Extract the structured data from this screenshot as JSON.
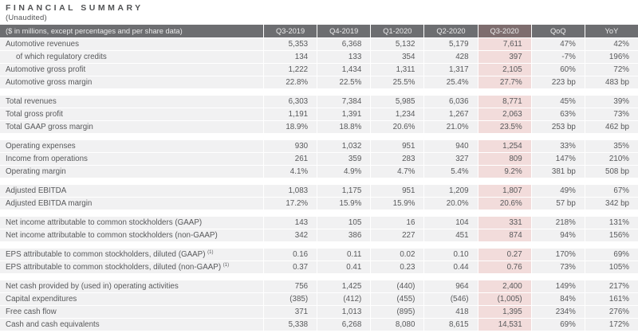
{
  "title": "FINANCIAL SUMMARY",
  "subtitle": "(Unaudited)",
  "colors": {
    "header_bg": "#6d6e71",
    "header_highlight_bg": "#7e6d6e",
    "header_text": "#ebebec",
    "row_bg": "#f1f1f2",
    "highlight_cell_bg": "#f2dcdb",
    "text": "#58595b",
    "text_dark": "#515254"
  },
  "table": {
    "label_header": "($ in millions, except percentages and per share data)",
    "columns": [
      "Q3-2019",
      "Q4-2019",
      "Q1-2020",
      "Q2-2020",
      "Q3-2020",
      "QoQ",
      "YoY"
    ],
    "highlight_column": "Q3-2020",
    "sections": [
      {
        "rows": [
          {
            "label": "Automotive revenues",
            "values": [
              "5,353",
              "6,368",
              "5,132",
              "5,179",
              "7,611",
              "47%",
              "42%"
            ]
          },
          {
            "label": "of which regulatory credits",
            "indent": true,
            "values": [
              "134",
              "133",
              "354",
              "428",
              "397",
              "-7%",
              "196%"
            ]
          },
          {
            "label": "Automotive gross profit",
            "values": [
              "1,222",
              "1,434",
              "1,311",
              "1,317",
              "2,105",
              "60%",
              "72%"
            ]
          },
          {
            "label": "Automotive gross margin",
            "values": [
              "22.8%",
              "22.5%",
              "25.5%",
              "25.4%",
              "27.7%",
              "223 bp",
              "483 bp"
            ]
          }
        ]
      },
      {
        "rows": [
          {
            "label": "Total revenues",
            "values": [
              "6,303",
              "7,384",
              "5,985",
              "6,036",
              "8,771",
              "45%",
              "39%"
            ]
          },
          {
            "label": "Total gross profit",
            "values": [
              "1,191",
              "1,391",
              "1,234",
              "1,267",
              "2,063",
              "63%",
              "73%"
            ]
          },
          {
            "label": "Total GAAP gross margin",
            "values": [
              "18.9%",
              "18.8%",
              "20.6%",
              "21.0%",
              "23.5%",
              "253 bp",
              "462 bp"
            ]
          }
        ]
      },
      {
        "rows": [
          {
            "label": "Operating expenses",
            "values": [
              "930",
              "1,032",
              "951",
              "940",
              "1,254",
              "33%",
              "35%"
            ]
          },
          {
            "label": "Income from operations",
            "values": [
              "261",
              "359",
              "283",
              "327",
              "809",
              "147%",
              "210%"
            ]
          },
          {
            "label": "Operating margin",
            "values": [
              "4.1%",
              "4.9%",
              "4.7%",
              "5.4%",
              "9.2%",
              "381 bp",
              "508 bp"
            ]
          }
        ]
      },
      {
        "rows": [
          {
            "label": "Adjusted EBITDA",
            "values": [
              "1,083",
              "1,175",
              "951",
              "1,209",
              "1,807",
              "49%",
              "67%"
            ]
          },
          {
            "label": "Adjusted EBITDA margin",
            "values": [
              "17.2%",
              "15.9%",
              "15.9%",
              "20.0%",
              "20.6%",
              "57 bp",
              "342 bp"
            ]
          }
        ]
      },
      {
        "rows": [
          {
            "label": "Net income attributable to common stockholders (GAAP)",
            "values": [
              "143",
              "105",
              "16",
              "104",
              "331",
              "218%",
              "131%"
            ]
          },
          {
            "label": "Net income attributable to common stockholders (non-GAAP)",
            "values": [
              "342",
              "386",
              "227",
              "451",
              "874",
              "94%",
              "156%"
            ]
          }
        ]
      },
      {
        "rows": [
          {
            "label": "EPS attributable to common stockholders, diluted (GAAP)",
            "footnote": "(1)",
            "values": [
              "0.16",
              "0.11",
              "0.02",
              "0.10",
              "0.27",
              "170%",
              "69%"
            ]
          },
          {
            "label": "EPS attributable to common stockholders, diluted (non-GAAP)",
            "footnote": "(1)",
            "values": [
              "0.37",
              "0.41",
              "0.23",
              "0.44",
              "0.76",
              "73%",
              "105%"
            ]
          }
        ]
      },
      {
        "rows": [
          {
            "label": "Net cash provided by (used in) operating activities",
            "values": [
              "756",
              "1,425",
              "(440)",
              "964",
              "2,400",
              "149%",
              "217%"
            ]
          },
          {
            "label": "Capital expenditures",
            "values": [
              "(385)",
              "(412)",
              "(455)",
              "(546)",
              "(1,005)",
              "84%",
              "161%"
            ]
          },
          {
            "label": "Free cash flow",
            "values": [
              "371",
              "1,013",
              "(895)",
              "418",
              "1,395",
              "234%",
              "276%"
            ]
          },
          {
            "label": "Cash and cash equivalents",
            "values": [
              "5,338",
              "6,268",
              "8,080",
              "8,615",
              "14,531",
              "69%",
              "172%"
            ]
          }
        ]
      }
    ]
  }
}
